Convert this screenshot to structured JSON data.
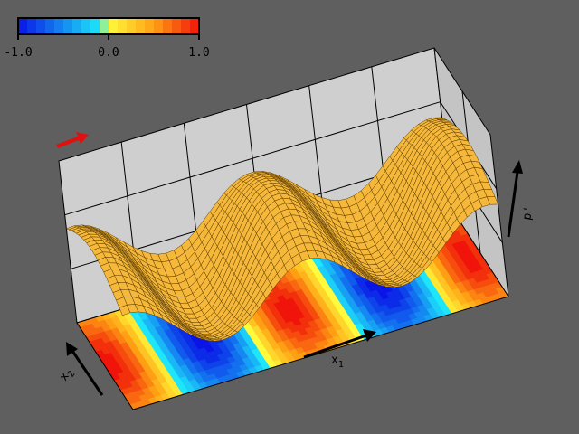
{
  "chart_data": {
    "type": "surface",
    "colorbar": {
      "lim": [
        -1,
        1
      ],
      "ticks": [
        {
          "value": -1,
          "label": "-1.0"
        },
        {
          "value": 0,
          "label": "0.0"
        },
        {
          "value": 1,
          "label": "1.0"
        }
      ]
    },
    "xlabel": {
      "text": "x",
      "sub": "1"
    },
    "ylabel": {
      "text": "x",
      "sub": "2"
    },
    "zlabel": "p'"
  }
}
